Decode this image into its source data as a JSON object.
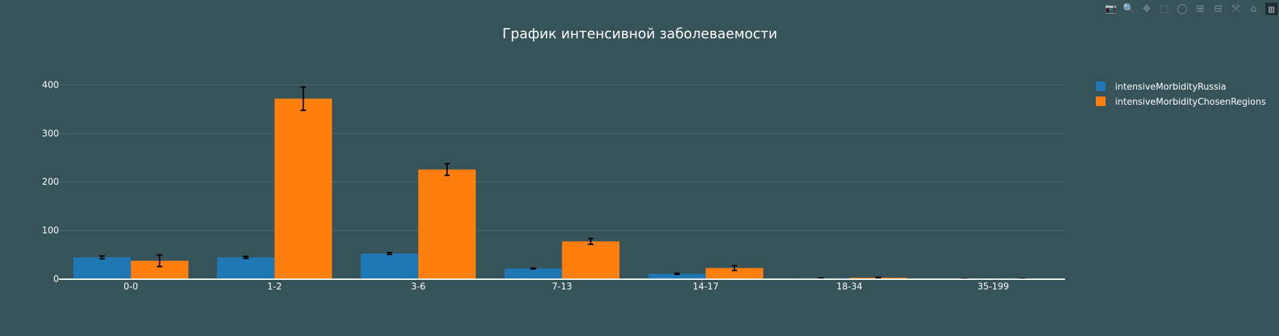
{
  "modebar": {
    "buttons": [
      {
        "icon": "camera-icon",
        "glyph": "📷"
      },
      {
        "icon": "zoom-icon",
        "glyph": "🔍",
        "active": true
      },
      {
        "icon": "pan-icon",
        "glyph": "✥"
      },
      {
        "icon": "box-select-icon",
        "glyph": "⬚"
      },
      {
        "icon": "lasso-select-icon",
        "glyph": "◯"
      },
      {
        "icon": "zoom-in-icon",
        "glyph": "⊞"
      },
      {
        "icon": "zoom-out-icon",
        "glyph": "⊟"
      },
      {
        "icon": "autoscale-icon",
        "glyph": "⤧"
      },
      {
        "icon": "reset-axes-icon",
        "glyph": "⌂"
      },
      {
        "icon": "plotly-logo-icon",
        "glyph": "▥"
      }
    ]
  },
  "chart_data": {
    "type": "bar",
    "title": "График интенсивной заболеваемости",
    "xlabel": "",
    "ylabel": "",
    "categories": [
      "0-0",
      "1-2",
      "3-6",
      "7-13",
      "14-17",
      "18-34",
      "35-199"
    ],
    "ylim": [
      0,
      440
    ],
    "yticks": [
      0,
      100,
      200,
      300,
      400
    ],
    "grid": true,
    "legend_position": "top-right",
    "series": [
      {
        "name": "intensiveMorbidityRussia",
        "color": "#1f77b4",
        "values": [
          45,
          45,
          53,
          22,
          11,
          2,
          1
        ],
        "error": [
          3,
          2,
          2,
          1,
          1,
          0.5,
          0.3
        ]
      },
      {
        "name": "intensiveMorbidityChosenRegions",
        "color": "#ff7f0e",
        "values": [
          38,
          372,
          226,
          78,
          23,
          3,
          1
        ],
        "error": [
          12,
          24,
          12,
          6,
          5,
          1,
          0.5
        ]
      }
    ]
  }
}
